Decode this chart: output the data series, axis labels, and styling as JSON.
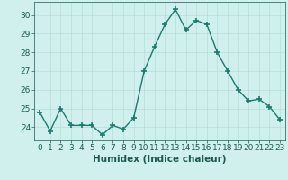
{
  "x": [
    0,
    1,
    2,
    3,
    4,
    5,
    6,
    7,
    8,
    9,
    10,
    11,
    12,
    13,
    14,
    15,
    16,
    17,
    18,
    19,
    20,
    21,
    22,
    23
  ],
  "y": [
    24.8,
    23.8,
    25.0,
    24.1,
    24.1,
    24.1,
    23.6,
    24.1,
    23.9,
    24.5,
    27.0,
    28.3,
    29.5,
    30.3,
    29.2,
    29.7,
    29.5,
    28.0,
    27.0,
    26.0,
    25.4,
    25.5,
    25.1,
    24.4
  ],
  "line_color": "#1a7a6e",
  "marker": "+",
  "markersize": 4,
  "markeredgewidth": 1.2,
  "linewidth": 1.0,
  "bg_color": "#cff0ec",
  "grid_color": "#b8ddd9",
  "tick_color": "#1a5a50",
  "xlabel": "Humidex (Indice chaleur)",
  "xlabel_fontsize": 7.5,
  "ylim": [
    23.3,
    30.7
  ],
  "yticks": [
    24,
    25,
    26,
    27,
    28,
    29,
    30
  ],
  "xticks": [
    0,
    1,
    2,
    3,
    4,
    5,
    6,
    7,
    8,
    9,
    10,
    11,
    12,
    13,
    14,
    15,
    16,
    17,
    18,
    19,
    20,
    21,
    22,
    23
  ],
  "tick_fontsize": 6.5
}
